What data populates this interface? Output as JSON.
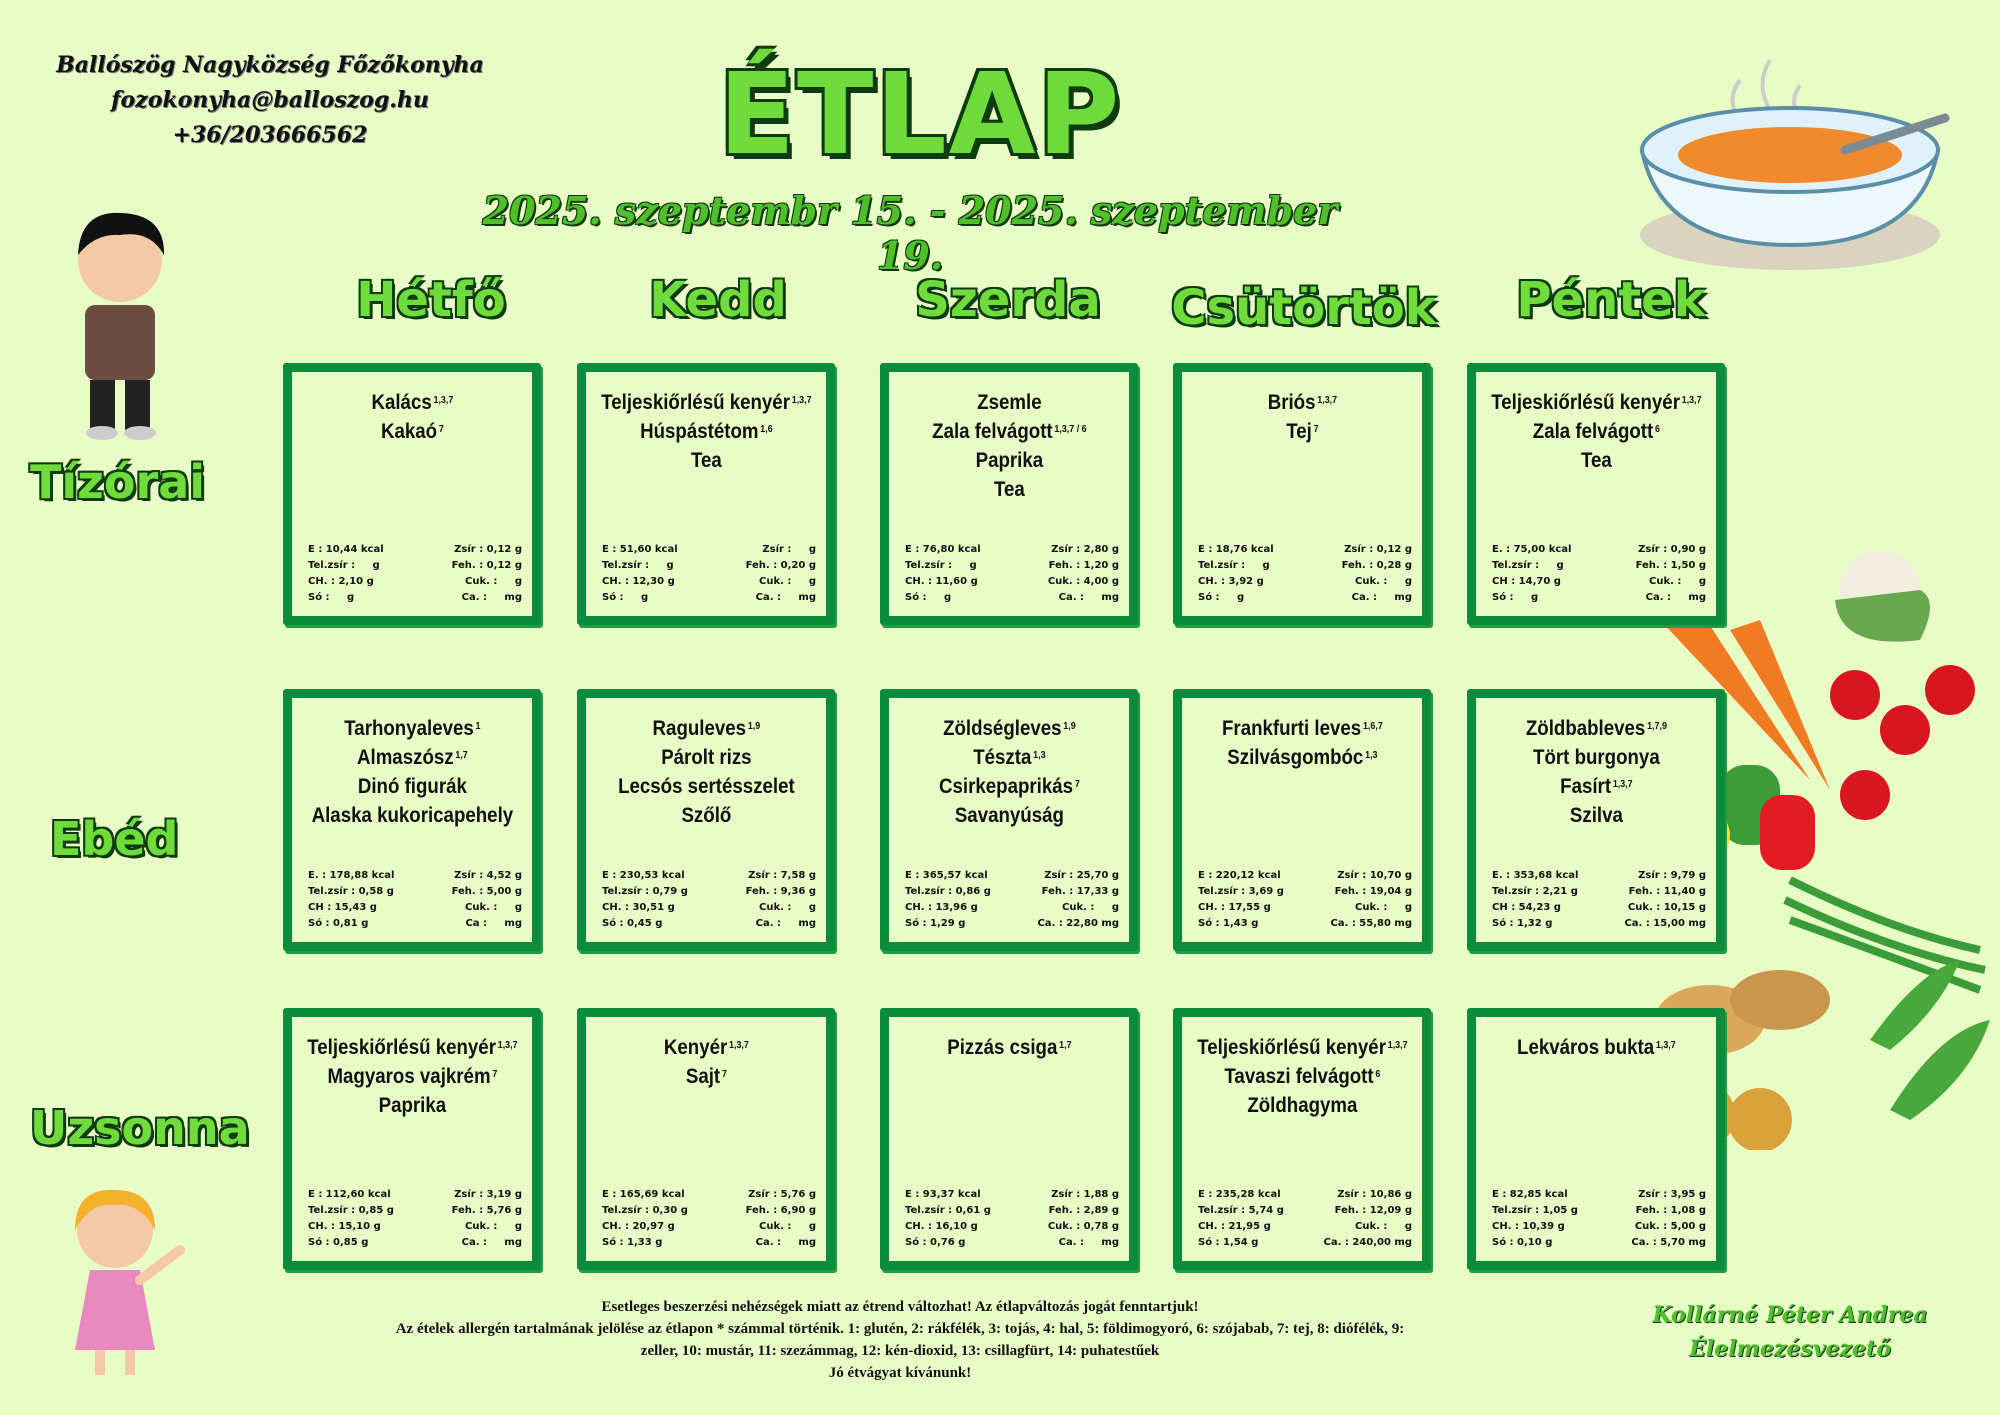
{
  "header": {
    "org_name": "Ballószög Nagyközség Főzőkonyha",
    "email": "fozokonyha@balloszog.hu",
    "phone": "+36/203666562",
    "title": "ÉTLAP",
    "date_range": "2025. szeptembr 15. - 2025. szeptember 19."
  },
  "colors": {
    "accent": "#6fdc3c",
    "frame": "#0a8c3c",
    "background": "#e8fcc6"
  },
  "days": [
    "Hétfő",
    "Kedd",
    "Szerda",
    "Csütörtök",
    "Péntek"
  ],
  "meals": [
    {
      "label": "Tízórai",
      "cards": [
        {
          "items": [
            {
              "name": "Kalács",
              "allergen": "1,3,7"
            },
            {
              "name": "Kakaó",
              "allergen": "7"
            }
          ],
          "left": [
            "E : 10,44 kcal",
            "Tel.zsír :     g",
            "CH. : 2,10 g",
            "Só :     g"
          ],
          "right": [
            "Zsír : 0,12 g",
            "Feh. : 0,12 g",
            "Cuk. :     g",
            "Ca. :     mg"
          ]
        },
        {
          "items": [
            {
              "name": "Teljeskiőrlésű kenyér",
              "allergen": "1,3,7"
            },
            {
              "name": "Húspástétom",
              "allergen": "1,6"
            },
            {
              "name": "Tea",
              "allergen": ""
            }
          ],
          "left": [
            "E : 51,60 kcal",
            "Tel.zsír :     g",
            "CH. : 12,30 g",
            "Só :     g"
          ],
          "right": [
            "Zsír :     g",
            "Feh. : 0,20 g",
            "Cuk. :     g",
            "Ca. :     mg"
          ]
        },
        {
          "items": [
            {
              "name": "Zsemle",
              "allergen": ""
            },
            {
              "name": "Zala felvágott",
              "allergen": "1,3,7 / 6"
            },
            {
              "name": "Paprika",
              "allergen": ""
            },
            {
              "name": "Tea",
              "allergen": ""
            }
          ],
          "left": [
            "E : 76,80 kcal",
            "Tel.zsír :     g",
            "CH. : 11,60 g",
            "Só :     g"
          ],
          "right": [
            "Zsír : 2,80 g",
            "Feh. : 1,20 g",
            "Cuk. : 4,00 g",
            "Ca. :     mg"
          ]
        },
        {
          "items": [
            {
              "name": "Briós",
              "allergen": "1,3,7"
            },
            {
              "name": "Tej",
              "allergen": "7"
            }
          ],
          "left": [
            "E : 18,76 kcal",
            "Tel.zsír :     g",
            "CH. : 3,92 g",
            "Só :     g"
          ],
          "right": [
            "Zsír : 0,12 g",
            "Feh. : 0,28 g",
            "Cuk. :     g",
            "Ca. :     mg"
          ]
        },
        {
          "items": [
            {
              "name": "Teljeskiőrlésű kenyér",
              "allergen": "1,3,7"
            },
            {
              "name": "Zala felvágott",
              "allergen": "6"
            },
            {
              "name": "Tea",
              "allergen": ""
            }
          ],
          "left": [
            "E. : 75,00 kcal",
            "Tel.zsír :     g",
            "CH : 14,70 g",
            "Só :     g"
          ],
          "right": [
            "Zsír : 0,90 g",
            "Feh. : 1,50 g",
            "Cuk. :     g",
            "Ca. :     mg"
          ]
        }
      ]
    },
    {
      "label": "Ebéd",
      "cards": [
        {
          "items": [
            {
              "name": "Tarhonyaleves",
              "allergen": "1"
            },
            {
              "name": "Almaszósz",
              "allergen": "1,7"
            },
            {
              "name": "Dinó figurák",
              "allergen": ""
            },
            {
              "name": "Alaska kukoricapehely",
              "allergen": ""
            }
          ],
          "left": [
            "E. : 178,88 kcal",
            "Tel.zsír : 0,58 g",
            "CH : 15,43 g",
            "Só : 0,81 g"
          ],
          "right": [
            "Zsír : 4,52 g",
            "Feh. : 5,00 g",
            "Cuk. :     g",
            "Ca :     mg"
          ]
        },
        {
          "items": [
            {
              "name": "Raguleves",
              "allergen": "1,9"
            },
            {
              "name": "Párolt rizs",
              "allergen": ""
            },
            {
              "name": "Lecsós sertésszelet",
              "allergen": ""
            },
            {
              "name": "Szőlő",
              "allergen": ""
            }
          ],
          "left": [
            "E : 230,53 kcal",
            "Tel.zsír : 0,79 g",
            "CH. : 30,51 g",
            "Só : 0,45 g"
          ],
          "right": [
            "Zsír : 7,58 g",
            "Feh. : 9,36 g",
            "Cuk. :     g",
            "Ca. :     mg"
          ]
        },
        {
          "items": [
            {
              "name": "Zöldségleves",
              "allergen": "1,9"
            },
            {
              "name": "Tészta",
              "allergen": "1,3"
            },
            {
              "name": "Csirkepaprikás",
              "allergen": "7"
            },
            {
              "name": "Savanyúság",
              "allergen": ""
            }
          ],
          "left": [
            "E : 365,57 kcal",
            "Tel.zsír : 0,86 g",
            "CH. : 13,96 g",
            "Só : 1,29 g"
          ],
          "right": [
            "Zsír : 25,70 g",
            "Feh. : 17,33 g",
            "Cuk. :     g",
            "Ca. : 22,80 mg"
          ]
        },
        {
          "items": [
            {
              "name": "Frankfurti leves",
              "allergen": "1,6,7"
            },
            {
              "name": "Szilvásgombóc",
              "allergen": "1,3"
            }
          ],
          "left": [
            "E : 220,12 kcal",
            "Tel.zsír : 3,69 g",
            "CH. : 17,55 g",
            "Só : 1,43 g"
          ],
          "right": [
            "Zsír : 10,70 g",
            "Feh. : 19,04 g",
            "Cuk. :     g",
            "Ca. : 55,80 mg"
          ]
        },
        {
          "items": [
            {
              "name": "Zöldbableves",
              "allergen": "1,7,9"
            },
            {
              "name": "Tört burgonya",
              "allergen": ""
            },
            {
              "name": "Fasírt",
              "allergen": "1,3,7"
            },
            {
              "name": "Szilva",
              "allergen": ""
            }
          ],
          "left": [
            "E. : 353,68 kcal",
            "Tel.zsír : 2,21 g",
            "CH : 54,23 g",
            "Só : 1,32 g"
          ],
          "right": [
            "Zsír : 9,79 g",
            "Feh. : 11,40 g",
            "Cuk. : 10,15 g",
            "Ca. : 15,00 mg"
          ]
        }
      ]
    },
    {
      "label": "Uzsonna",
      "cards": [
        {
          "items": [
            {
              "name": "Teljeskiőrlésű kenyér",
              "allergen": "1,3,7"
            },
            {
              "name": "Magyaros vajkrém",
              "allergen": "7"
            },
            {
              "name": "Paprika",
              "allergen": ""
            }
          ],
          "left": [
            "E : 112,60 kcal",
            "Tel.zsír : 0,85 g",
            "CH. : 15,10 g",
            "Só : 0,85 g"
          ],
          "right": [
            "Zsír : 3,19 g",
            "Feh. : 5,76 g",
            "Cuk. :     g",
            "Ca. :     mg"
          ]
        },
        {
          "items": [
            {
              "name": "Kenyér",
              "allergen": "1,3,7"
            },
            {
              "name": "Sajt",
              "allergen": "7"
            }
          ],
          "left": [
            "E : 165,69 kcal",
            "Tel.zsír : 0,30 g",
            "CH. : 20,97 g",
            "Só : 1,33 g"
          ],
          "right": [
            "Zsír : 5,76 g",
            "Feh. : 6,90 g",
            "Cuk. :     g",
            "Ca. :     mg"
          ]
        },
        {
          "items": [
            {
              "name": "Pizzás csiga",
              "allergen": "1,7"
            }
          ],
          "left": [
            "E : 93,37 kcal",
            "Tel.zsír : 0,61 g",
            "CH. : 16,10 g",
            "Só : 0,76 g"
          ],
          "right": [
            "Zsír : 1,88 g",
            "Feh. : 2,89 g",
            "Cuk. : 0,78 g",
            "Ca. :     mg"
          ]
        },
        {
          "items": [
            {
              "name": "Teljeskiőrlésű kenyér",
              "allergen": "1,3,7"
            },
            {
              "name": "Tavaszi felvágott",
              "allergen": "6"
            },
            {
              "name": "Zöldhagyma",
              "allergen": ""
            }
          ],
          "left": [
            "E : 235,28 kcal",
            "Tel.zsír : 5,74 g",
            "CH. : 21,95 g",
            "Só : 1,54 g"
          ],
          "right": [
            "Zsír : 10,86 g",
            "Feh. : 12,09 g",
            "Cuk. :     g",
            "Ca. : 240,00 mg"
          ]
        },
        {
          "items": [
            {
              "name": "Lekváros bukta",
              "allergen": "1,3,7"
            }
          ],
          "left": [
            "E : 82,85 kcal",
            "Tel.zsír : 1,05 g",
            "CH. : 10,39 g",
            "Só : 0,10 g"
          ],
          "right": [
            "Zsír : 3,95 g",
            "Feh. : 1,08 g",
            "Cuk. : 5,00 g",
            "Ca. : 5,70 mg"
          ]
        }
      ]
    }
  ],
  "footer": {
    "lines": [
      "Esetleges beszerzési nehézségek miatt az étrend változhat! Az étlapváltozás jogát fenntartjuk!",
      "Az ételek allergén tartalmának jelölése az étlapon * számmal történik. 1: glutén, 2: rákfélék, 3: tojás, 4: hal, 5: földimogyoró, 6: szójabab, 7: tej, 8: diófélék, 9: zeller, 10: mustár, 11: szezámmag, 12: kén-dioxid, 13: csillagfürt, 14: puhatestűek",
      "Jó étvágyat kívánunk!"
    ]
  },
  "signature": {
    "name": "Kollárné Péter Andrea",
    "role": "Élelmezésvezető"
  },
  "decorations": [
    "soup-bowl-icon",
    "boy-illustration",
    "girl-illustration",
    "vegetables-illustration"
  ]
}
